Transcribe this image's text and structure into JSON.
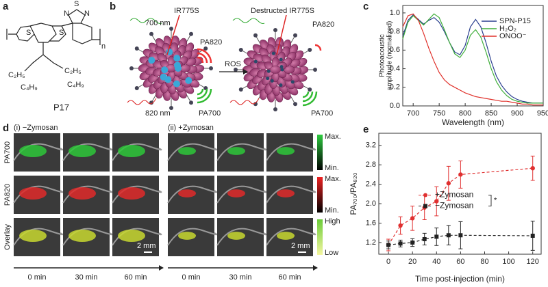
{
  "panel_labels": [
    "a",
    "b",
    "c",
    "d",
    "e"
  ],
  "panel_a": {
    "atoms": [
      "S",
      "S",
      "S",
      "N",
      "N"
    ],
    "repeat": "n",
    "side_chains": [
      "C₂H₅",
      "C₄H₉",
      "C₂H₅",
      "C₄H₉"
    ],
    "name": "P17"
  },
  "panel_b": {
    "labels": [
      "IR775S",
      "700 nm",
      "PA820",
      "820 nm",
      "PA700",
      "ROS",
      "Destructed IR775S",
      "PA820",
      "PA700"
    ]
  },
  "panel_d": {
    "groups": [
      "(i) −Zymosan",
      "(ii) +Zymosan"
    ],
    "rows": [
      "PA700",
      "PA820",
      "Overlay"
    ],
    "colorbars": [
      [
        "Max.",
        "Min."
      ],
      [
        "Max.",
        "Min."
      ],
      [
        "High",
        "Low"
      ]
    ],
    "scale": "2 mm",
    "times": [
      "0 min",
      "30 min",
      "60 min"
    ]
  },
  "chart_data": [
    {
      "type": "line",
      "xlabel": "Wavelength (nm)",
      "ylabel": [
        "Photoacoustic",
        "amplitude (normalized)"
      ],
      "x": [
        680,
        690,
        700,
        710,
        720,
        730,
        740,
        750,
        760,
        770,
        780,
        790,
        800,
        810,
        820,
        830,
        840,
        850,
        860,
        870,
        880,
        890,
        900,
        910,
        920,
        930,
        940,
        950
      ],
      "series": [
        {
          "name": "SPN-P15",
          "color": "#2a3f8f",
          "values": [
            0.75,
            0.92,
            0.98,
            0.93,
            0.88,
            0.92,
            0.95,
            0.9,
            0.8,
            0.68,
            0.58,
            0.55,
            0.65,
            0.85,
            0.93,
            0.85,
            0.68,
            0.48,
            0.32,
            0.22,
            0.15,
            0.1,
            0.07,
            0.05,
            0.04,
            0.03,
            0.03,
            0.03
          ]
        },
        {
          "name": "H₂O₂",
          "color": "#3fae3a",
          "values": [
            0.72,
            0.9,
            0.97,
            0.92,
            0.87,
            0.93,
            0.99,
            0.95,
            0.82,
            0.68,
            0.56,
            0.52,
            0.6,
            0.76,
            0.82,
            0.74,
            0.58,
            0.4,
            0.26,
            0.17,
            0.11,
            0.07,
            0.05,
            0.04,
            0.03,
            0.03,
            0.03,
            0.03
          ]
        },
        {
          "name": "ONOO⁻",
          "color": "#e0302a",
          "values": [
            0.85,
            0.97,
            0.99,
            0.92,
            0.78,
            0.62,
            0.48,
            0.36,
            0.28,
            0.23,
            0.2,
            0.17,
            0.14,
            0.12,
            0.1,
            0.09,
            0.08,
            0.07,
            0.06,
            0.05,
            0.05,
            0.04,
            0.03,
            0.02,
            0.02,
            0.01,
            0.01,
            0.01
          ]
        }
      ],
      "xlim": [
        680,
        950
      ],
      "xticks": [
        700,
        750,
        800,
        850,
        900,
        950
      ],
      "ylim": [
        0,
        1.08
      ],
      "yticks": [
        {
          "value": 0,
          "label": "0.0"
        },
        0.2,
        0.4,
        0.6,
        0.8,
        {
          "value": 1,
          "label": "1.0"
        }
      ],
      "legend": "upper-right"
    },
    {
      "type": "scatter",
      "xlabel": "Time post-injection (min)",
      "ylabel": "PA₇₀₀/PA₈₂₀",
      "annotation": "*",
      "x": [
        0,
        10,
        20,
        30,
        40,
        50,
        60,
        120
      ],
      "series": [
        {
          "name": "+Zymosan",
          "color": "#e03030",
          "marker": "circle",
          "values": [
            1.15,
            1.55,
            1.7,
            1.92,
            2.05,
            2.42,
            2.6,
            2.73
          ],
          "errors": [
            0.12,
            0.18,
            0.25,
            0.25,
            0.3,
            0.35,
            0.28,
            0.25
          ]
        },
        {
          "name": "−Zymosan",
          "color": "#222222",
          "marker": "square",
          "values": [
            1.15,
            1.18,
            1.2,
            1.27,
            1.32,
            1.35,
            1.35,
            1.34
          ],
          "errors": [
            0.08,
            0.07,
            0.08,
            0.12,
            0.18,
            0.2,
            0.28,
            0.3
          ]
        }
      ],
      "xlim": [
        -8,
        127
      ],
      "xticks": [
        0,
        20,
        40,
        60,
        80,
        100,
        120
      ],
      "ylim": [
        0.96,
        3.45
      ],
      "yticks": [
        1.2,
        1.6,
        {
          "value": 2,
          "label": "2.0"
        },
        2.4,
        2.8,
        3.2
      ],
      "legend": "left"
    }
  ]
}
